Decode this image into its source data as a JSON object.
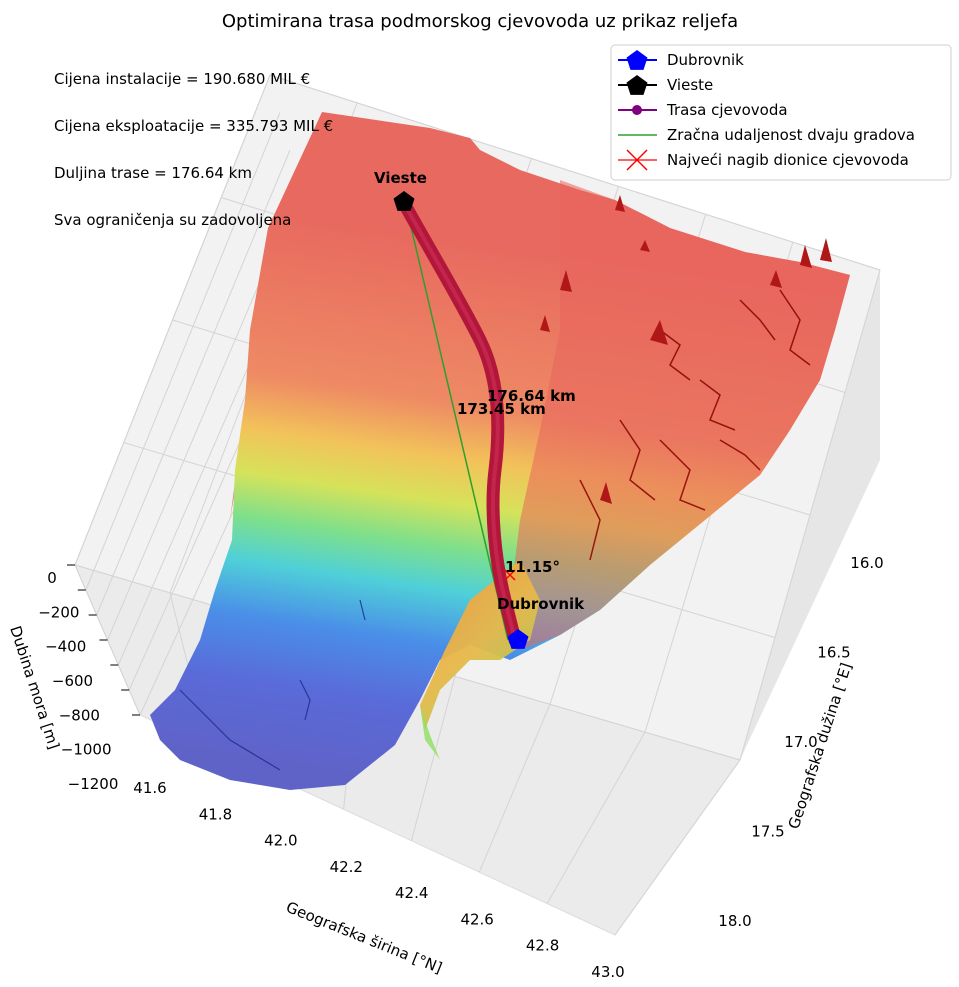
{
  "chart_data": {
    "type": "surface3d",
    "title": "Optimirana trasa podmorskog cjevovoda uz prikaz reljefa",
    "xlabel": "Geografska širina [°N]",
    "ylabel": "Geografska dužina [°E]",
    "zlabel": "Dubina mora [m]",
    "x_ticks": [
      "41.6",
      "41.8",
      "42.0",
      "42.2",
      "42.4",
      "42.6",
      "42.8",
      "43.0"
    ],
    "y_ticks": [
      "16.0",
      "16.5",
      "17.0",
      "17.5",
      "18.0"
    ],
    "z_ticks": [
      "0",
      "−200",
      "−400",
      "−600",
      "−800",
      "−1000",
      "−1200"
    ],
    "zlim": [
      -1200,
      0
    ],
    "colormap": "jet",
    "grid": true,
    "legend_position": "top-right",
    "legend": [
      {
        "label": "Dubrovnik",
        "marker": "pentagon",
        "color": "#0000ff"
      },
      {
        "label": "Vieste",
        "marker": "pentagon",
        "color": "#000000"
      },
      {
        "label": "Trasa cjevovoda",
        "marker": "circle-line",
        "color": "#800080"
      },
      {
        "label": "Zračna udaljenost dvaju gradova",
        "marker": "line",
        "color": "#2ca02c"
      },
      {
        "label": "Najveći nagib dionice cjevovoda",
        "marker": "x",
        "color": "#ff0000"
      }
    ],
    "info_text": [
      "Cijena instalacije = 190.680 MIL €",
      "Cijena eksploatacije = 335.793 MIL €",
      "Duljina trase = 176.64 km",
      "Sva ograničenja su zadovoljena"
    ],
    "cities": [
      {
        "name": "Vieste",
        "lat": 41.88,
        "lon": 16.18,
        "color": "#000000"
      },
      {
        "name": "Dubrovnik",
        "lat": 42.65,
        "lon": 18.09,
        "color": "#0000ff"
      }
    ],
    "annotations": {
      "route_length": "176.64 km",
      "air_distance": "173.45 km",
      "max_slope": "11.15°"
    }
  }
}
